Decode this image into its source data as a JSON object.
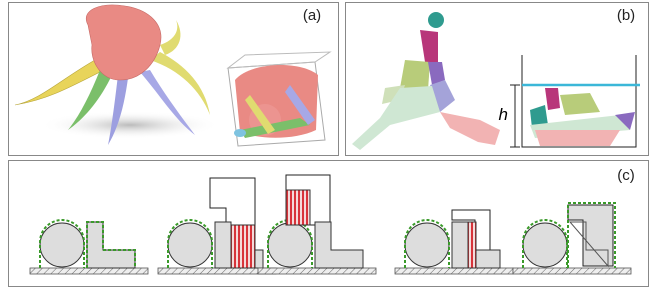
{
  "panels": [
    {
      "label": "(a)"
    },
    {
      "label": "(b)",
      "height_label": "h"
    },
    {
      "label": "(c)"
    }
  ]
}
